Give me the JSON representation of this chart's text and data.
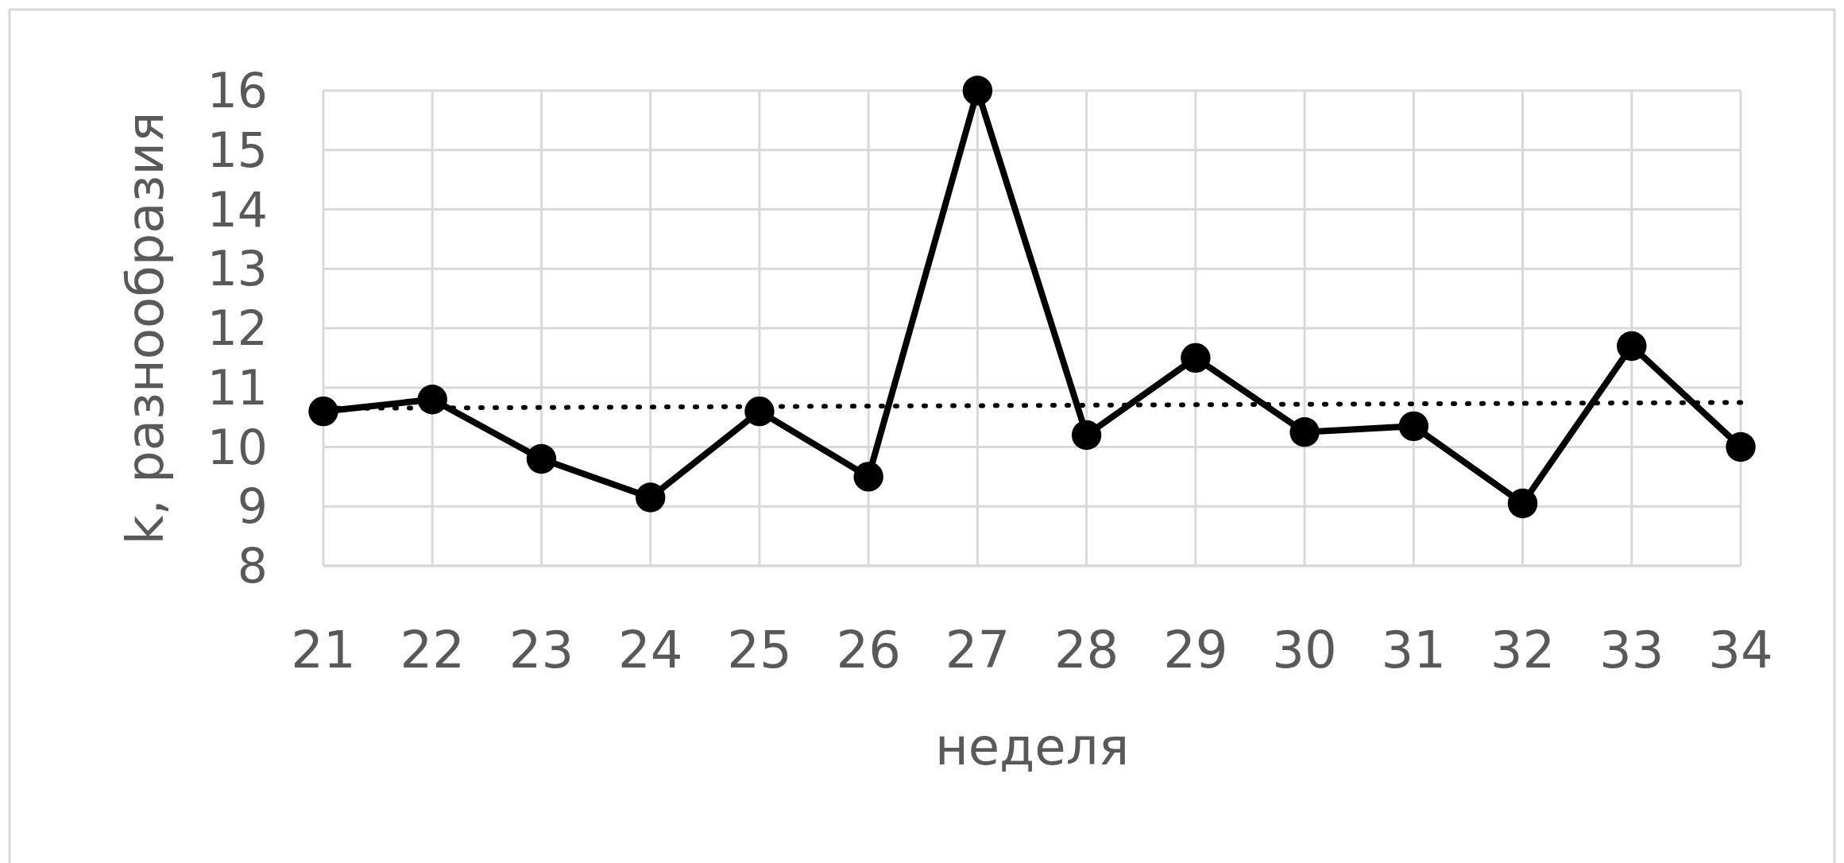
{
  "chart_data": {
    "type": "line",
    "xlabel": "неделя",
    "ylabel": "k, разнообразия",
    "x": [
      21,
      22,
      23,
      24,
      25,
      26,
      27,
      28,
      29,
      30,
      31,
      32,
      33,
      34
    ],
    "series": [
      {
        "color": "#000000",
        "values": [
          10.6,
          10.8,
          9.8,
          9.15,
          10.6,
          9.5,
          16,
          10.2,
          11.5,
          10.25,
          10.35,
          9.05,
          11.7,
          10.0
        ],
        "marker": "circle",
        "line_style": "solid"
      },
      {
        "type": "line",
        "color": "#000000",
        "x": [
          21,
          34
        ],
        "values": [
          10.65,
          10.75
        ],
        "marker": "none",
        "line_style": "dotted"
      }
    ],
    "xlim": [
      21,
      34
    ],
    "xticks": [
      21,
      22,
      23,
      24,
      25,
      26,
      27,
      28,
      29,
      30,
      31,
      32,
      33,
      34
    ],
    "ylim": [
      8,
      16
    ],
    "yticks": [
      8,
      9,
      10,
      11,
      12,
      13,
      14,
      15,
      16
    ],
    "grid": true
  }
}
